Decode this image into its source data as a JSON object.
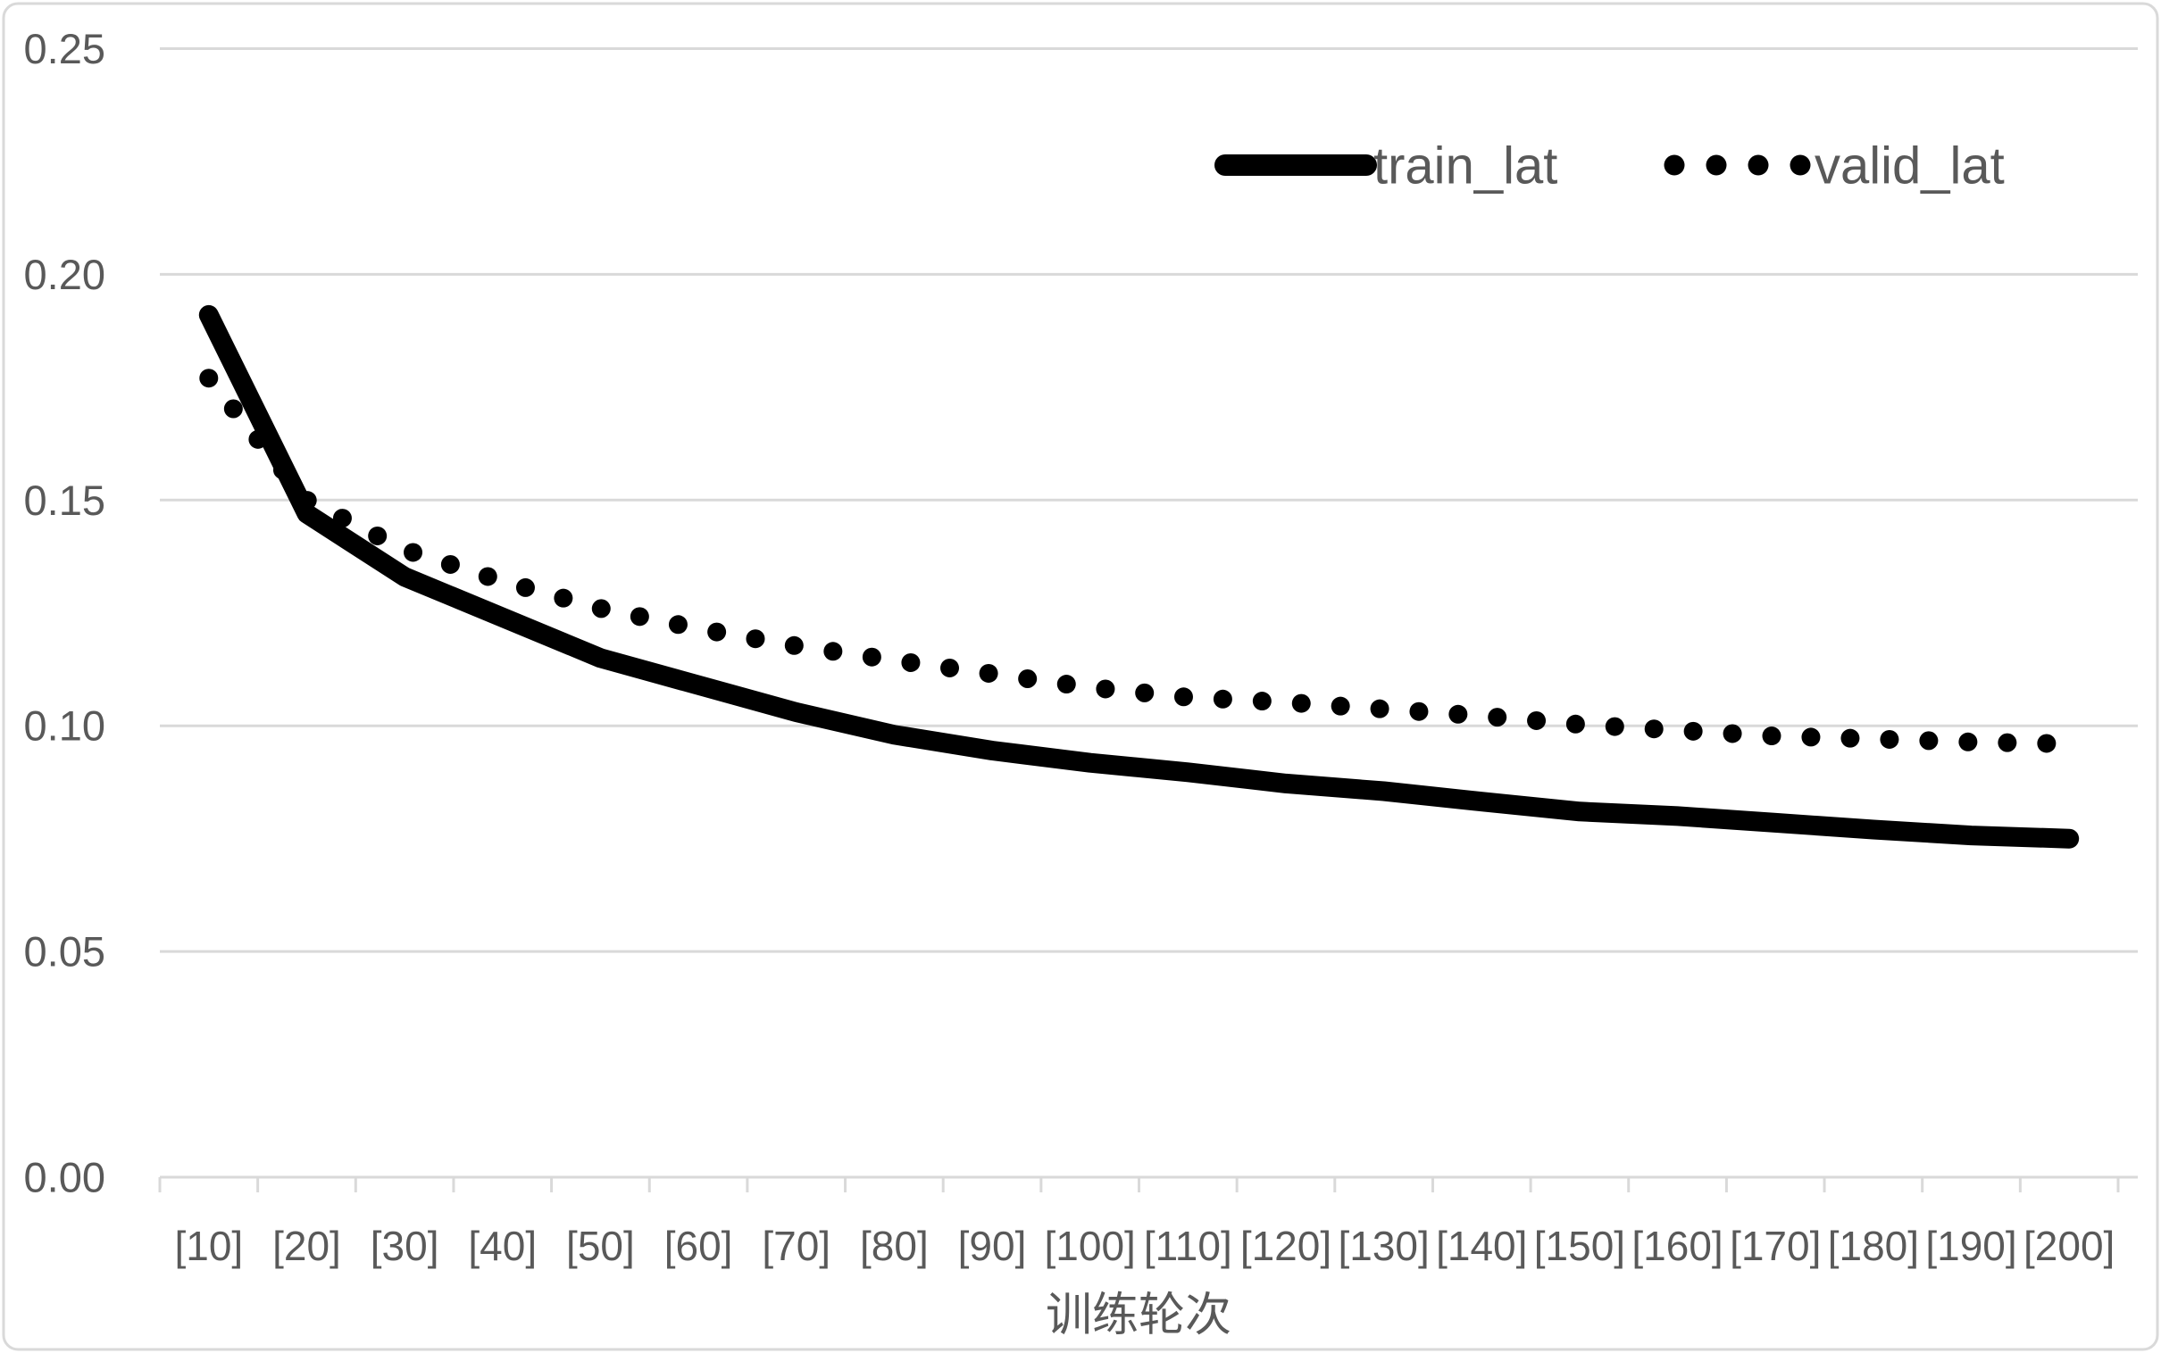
{
  "chart_data": {
    "type": "line",
    "categories": [
      "[10]",
      "[20]",
      "[30]",
      "[40]",
      "[50]",
      "[60]",
      "[70]",
      "[80]",
      "[90]",
      "[100]",
      "[110]",
      "[120]",
      "[130]",
      "[140]",
      "[150]",
      "[160]",
      "[170]",
      "[180]",
      "[190]",
      "[200]"
    ],
    "series": [
      {
        "name": "train_lat",
        "style": "solid",
        "color": "#000000",
        "values": [
          0.191,
          0.147,
          0.133,
          0.124,
          0.115,
          0.109,
          0.103,
          0.098,
          0.0945,
          0.0918,
          0.0897,
          0.0872,
          0.0855,
          0.0832,
          0.081,
          0.08,
          0.0785,
          0.077,
          0.0757,
          0.075
        ]
      },
      {
        "name": "valid_lat",
        "style": "dotted",
        "color": "#000000",
        "values": [
          0.177,
          0.15,
          0.139,
          0.132,
          0.126,
          0.1215,
          0.1177,
          0.1145,
          0.1115,
          0.1085,
          0.1063,
          0.1052,
          0.1037,
          0.1022,
          0.1003,
          0.099,
          0.0977,
          0.0971,
          0.0964,
          0.096
        ]
      }
    ],
    "title": "",
    "xlabel": "训练轮次",
    "ylabel": "",
    "ylim": [
      0,
      0.25
    ],
    "ytick_step": 0.05,
    "ytick_labels": [
      "0.00",
      "0.05",
      "0.10",
      "0.15",
      "0.20",
      "0.25"
    ],
    "grid": true,
    "legend_position": "top-right"
  },
  "legend": {
    "train_label": "train_lat",
    "valid_label": "valid_lat"
  },
  "colors": {
    "series": "#000000",
    "text": "#595959",
    "grid": "#D9D9D9",
    "axis": "#D9D9D9",
    "background": "#FFFFFF",
    "border": "#D9D9D9"
  }
}
